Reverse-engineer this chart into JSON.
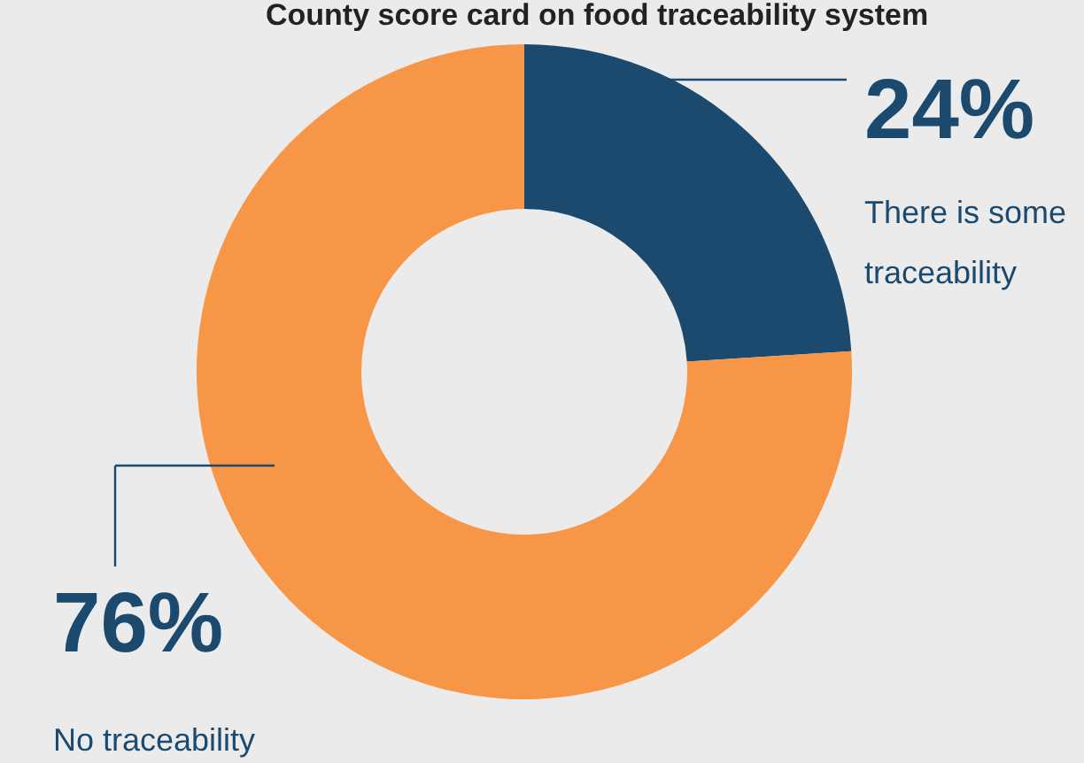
{
  "chart_data": {
    "type": "donut",
    "title": "County score card on food traceability system",
    "categories": [
      "There is some traceability",
      "No traceability"
    ],
    "values": [
      24,
      76
    ],
    "colors": [
      "#1b4a6e",
      "#f79646"
    ],
    "value_labels": [
      "24%",
      "76%"
    ],
    "legend": false
  }
}
